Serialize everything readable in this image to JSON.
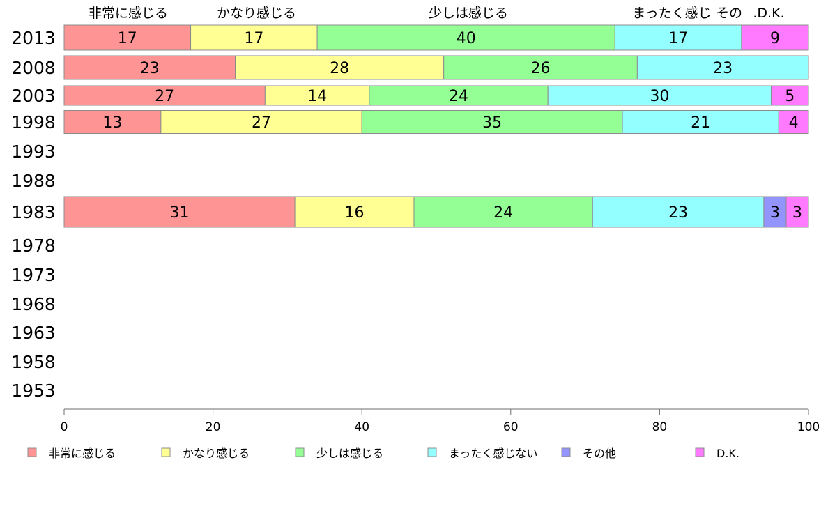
{
  "chart_data": {
    "type": "bar",
    "orientation": "horizontal",
    "stacked": true,
    "categories": [
      "2013",
      "2008",
      "2003",
      "1998",
      "1993",
      "1988",
      "1983",
      "1978",
      "1973",
      "1968",
      "1963",
      "1958",
      "1953"
    ],
    "series": [
      {
        "name": "非常に感じる",
        "color": "#ff9494",
        "values": [
          17,
          23,
          27,
          13,
          null,
          null,
          31,
          null,
          null,
          null,
          null,
          null,
          null
        ]
      },
      {
        "name": "かなり感じる",
        "color": "#ffff94",
        "values": [
          17,
          28,
          14,
          27,
          null,
          null,
          16,
          null,
          null,
          null,
          null,
          null,
          null
        ]
      },
      {
        "name": "少しは感じる",
        "color": "#94ff94",
        "values": [
          40,
          26,
          24,
          35,
          null,
          null,
          24,
          null,
          null,
          null,
          null,
          null,
          null
        ]
      },
      {
        "name": "まったく感じない",
        "color": "#94ffff",
        "values": [
          17,
          23,
          30,
          21,
          null,
          null,
          23,
          null,
          null,
          null,
          null,
          null,
          null
        ]
      },
      {
        "name": "その他",
        "color": "#9494ff",
        "values": [
          0,
          0,
          0,
          0,
          null,
          null,
          3,
          null,
          null,
          null,
          null,
          null,
          null
        ]
      },
      {
        "name": "D.K.",
        "color": "#ff7aff",
        "values": [
          9,
          0,
          5,
          4,
          null,
          null,
          3,
          null,
          null,
          null,
          null,
          null,
          null
        ]
      }
    ],
    "top_labels": [
      "非常に感じる",
      "かなり感じる",
      "少しは感じる",
      "まったく感じ",
      "その",
      ".D.K."
    ],
    "xlim": [
      0,
      100
    ],
    "xticks": [
      "0",
      "20",
      "40",
      "60",
      "80",
      "100"
    ],
    "title": "",
    "xlabel": "",
    "ylabel": "",
    "legend_position": "bottom",
    "grid": false
  }
}
